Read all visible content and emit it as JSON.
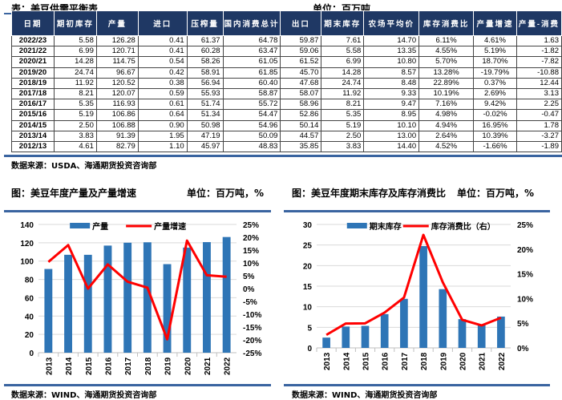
{
  "table": {
    "title": "表：美豆供需平衡表",
    "unit": "单位：百万吨",
    "source": "数据来源：USDA、海通期货投资咨询部",
    "headers": [
      "日期",
      "期初库存",
      "产量",
      "进口",
      "压榨量",
      "国内消费总计",
      "出口",
      "期末库存",
      "农场平均价",
      "库存消费比",
      "产量增速",
      "产量-消费"
    ],
    "rows": [
      [
        "2022/23",
        "5.58",
        "126.28",
        "0.41",
        "61.37",
        "64.78",
        "59.87",
        "7.61",
        "14.70",
        "6.11%",
        "4.61%",
        "1.63"
      ],
      [
        "2021/22",
        "6.99",
        "120.71",
        "0.41",
        "60.28",
        "63.47",
        "59.06",
        "5.58",
        "13.35",
        "4.55%",
        "5.19%",
        "-1.82"
      ],
      [
        "2020/21",
        "14.28",
        "114.75",
        "0.54",
        "58.26",
        "61.05",
        "61.52",
        "6.99",
        "10.80",
        "5.70%",
        "18.70%",
        "-7.82"
      ],
      [
        "2019/20",
        "24.74",
        "96.67",
        "0.42",
        "58.91",
        "61.85",
        "45.70",
        "14.28",
        "8.57",
        "13.28%",
        "-19.79%",
        "-10.88"
      ],
      [
        "2018/19",
        "11.92",
        "120.52",
        "0.38",
        "56.94",
        "60.40",
        "47.68",
        "24.74",
        "8.48",
        "22.89%",
        "0.37%",
        "12.44"
      ],
      [
        "2017/18",
        "8.21",
        "120.07",
        "0.59",
        "55.93",
        "58.87",
        "58.07",
        "11.92",
        "9.33",
        "10.19%",
        "2.69%",
        "3.13"
      ],
      [
        "2016/17",
        "5.35",
        "116.93",
        "0.61",
        "51.74",
        "55.72",
        "58.96",
        "8.21",
        "9.47",
        "7.16%",
        "9.42%",
        "2.25"
      ],
      [
        "2015/16",
        "5.19",
        "106.86",
        "0.64",
        "51.34",
        "54.47",
        "52.86",
        "5.35",
        "8.95",
        "4.98%",
        "-0.02%",
        "-0.47"
      ],
      [
        "2014/15",
        "2.50",
        "106.88",
        "0.90",
        "50.98",
        "54.96",
        "50.14",
        "5.19",
        "10.10",
        "4.94%",
        "16.95%",
        "1.78"
      ],
      [
        "2013/14",
        "3.83",
        "91.39",
        "1.95",
        "47.19",
        "50.09",
        "44.57",
        "2.50",
        "13.00",
        "2.64%",
        "10.39%",
        "-3.27"
      ],
      [
        "2012/13",
        "4.61",
        "82.79",
        "1.10",
        "45.97",
        "48.83",
        "35.85",
        "3.83",
        "14.40",
        "4.52%",
        "-1.66%",
        "-1.89"
      ]
    ]
  },
  "chart_data": [
    {
      "type": "bar+line",
      "title": "图：美豆年度产量及产量增速",
      "unit": "单位：百万吨，%",
      "source": "数据来源：WIND、海通期货投资咨询部",
      "categories": [
        "2013",
        "2014",
        "2015",
        "2016",
        "2017",
        "2018",
        "2019",
        "2020",
        "2021",
        "2022"
      ],
      "series": [
        {
          "name": "产量",
          "type": "bar",
          "axis": "left",
          "color": "#2e75b6",
          "values": [
            91.39,
            106.88,
            106.86,
            116.93,
            120.07,
            120.52,
            96.67,
            114.75,
            120.71,
            126.28
          ]
        },
        {
          "name": "产量增速",
          "type": "line",
          "axis": "right",
          "color": "#ff0000",
          "values": [
            10.39,
            16.95,
            -0.02,
            9.42,
            2.69,
            0.37,
            -19.79,
            18.7,
            5.19,
            4.61
          ]
        }
      ],
      "ylim_left": [
        0,
        140
      ],
      "yticks_left": [
        "0",
        "20",
        "40",
        "60",
        "80",
        "100",
        "120",
        "140"
      ],
      "ylim_right": [
        -25,
        25
      ],
      "yticks_right": [
        "-25%",
        "-20%",
        "-15%",
        "-10%",
        "-5%",
        "0%",
        "5%",
        "10%",
        "15%",
        "20%",
        "25%"
      ],
      "legend": "top",
      "grid": true
    },
    {
      "type": "bar+line",
      "title": "图：美豆年度期末库存及库存消费比",
      "unit": "单位：百万吨，%",
      "source": "数据来源：WIND、海通期货投资咨询部",
      "categories": [
        "2013",
        "2014",
        "2015",
        "2016",
        "2017",
        "2018",
        "2019",
        "2020",
        "2021",
        "2022"
      ],
      "series": [
        {
          "name": "期末库存",
          "type": "bar",
          "axis": "left",
          "color": "#2e75b6",
          "values": [
            2.5,
            5.19,
            5.35,
            8.21,
            11.92,
            24.74,
            14.28,
            6.99,
            5.58,
            7.61
          ]
        },
        {
          "name": "库存消费比（右）",
          "type": "line",
          "axis": "right",
          "color": "#ff0000",
          "values": [
            2.64,
            4.94,
            4.98,
            7.16,
            10.19,
            22.89,
            13.28,
            5.7,
            4.55,
            6.11
          ]
        }
      ],
      "ylim_left": [
        0,
        30
      ],
      "yticks_left": [
        "0",
        "5",
        "10",
        "15",
        "20",
        "25",
        "30"
      ],
      "ylim_right": [
        0,
        25
      ],
      "yticks_right": [
        "0%",
        "5%",
        "10%",
        "15%",
        "20%",
        "25%"
      ],
      "legend": "top",
      "grid": true
    }
  ]
}
